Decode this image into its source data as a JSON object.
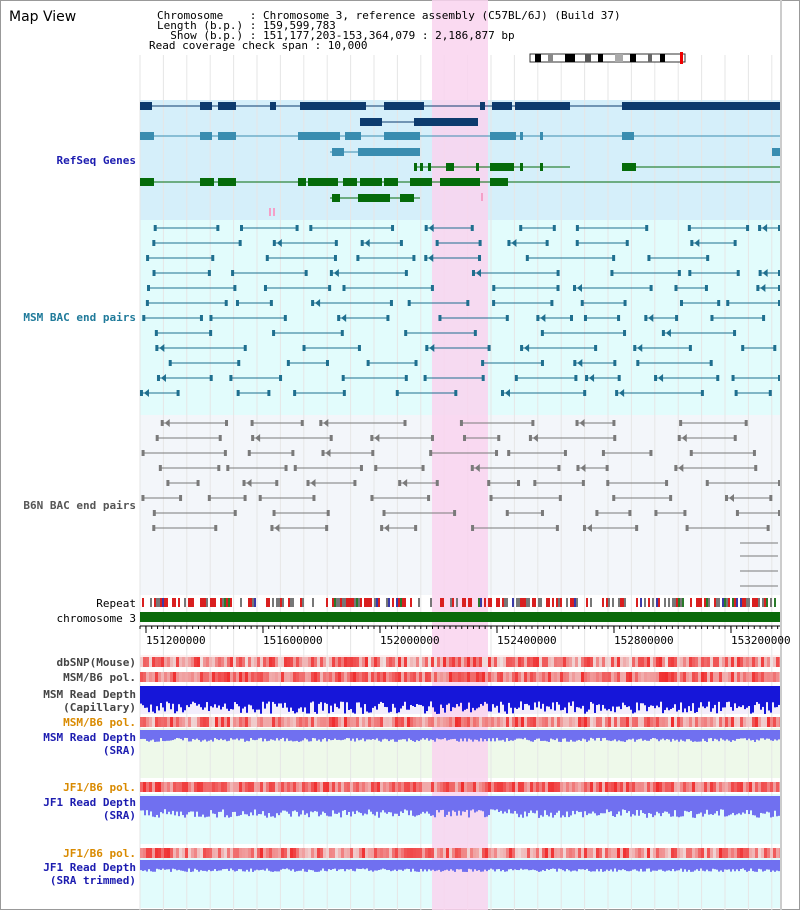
{
  "title": "Map View",
  "info": {
    "chromosome_label": "Chromosome    : Chromosome 3, reference assembly (C57BL/6J) (Build 37)",
    "length_label": "Length (b.p.) : 159,599,783",
    "show_label": "  Show (b.p.) : 151,177,203-153,364,079 : 2,186,877 bp",
    "coverage_label": "Read coverage check span : 10,000"
  },
  "tracks": {
    "refseq": "RefSeq Genes",
    "msm_bac": "MSM BAC end pairs",
    "b6n_bac": "B6N BAC end pairs",
    "repeat": "Repeat",
    "chromosome": "chromosome 3",
    "dbsnp": "dbSNP(Mouse)",
    "msm_pol": "MSM/B6 pol.",
    "msm_depth_cap_1": "MSM Read Depth",
    "msm_depth_cap_2": "(Capillary)",
    "msm_pol_sra": "MSM/B6 pol.",
    "msm_depth_sra_1": "MSM Read Depth",
    "msm_depth_sra_2": "(SRA)",
    "jf1_pol": "JF1/B6 pol.",
    "jf1_depth_1": "JF1 Read Depth",
    "jf1_depth_2": "(SRA)",
    "jf1_pol_trim": "JF1/B6 pol.",
    "jf1_trim_1": "JF1 Read Depth",
    "jf1_trim_2": "(SRA trimmed)"
  },
  "axis": {
    "ticks": [
      "151200000",
      "151600000",
      "152000000",
      "152400000",
      "152800000",
      "153200000"
    ]
  },
  "colors": {
    "highlight": "#f9d3ef",
    "refseq_bg": "#d5effa",
    "msm_bg": "#e2fcfc",
    "b6n_bg": "#f3f6fa",
    "gene_navy": "#0d3b6e",
    "gene_teal": "#3a8db0",
    "gene_green": "#056b0a",
    "msm_label": "#1f7a9a",
    "b6n_label": "#555555",
    "blue_label": "#1c1cb0",
    "orange_label": "#d98a00",
    "depth_blue": "#1616d9",
    "depth_periwinkle": "#7070f0"
  }
}
